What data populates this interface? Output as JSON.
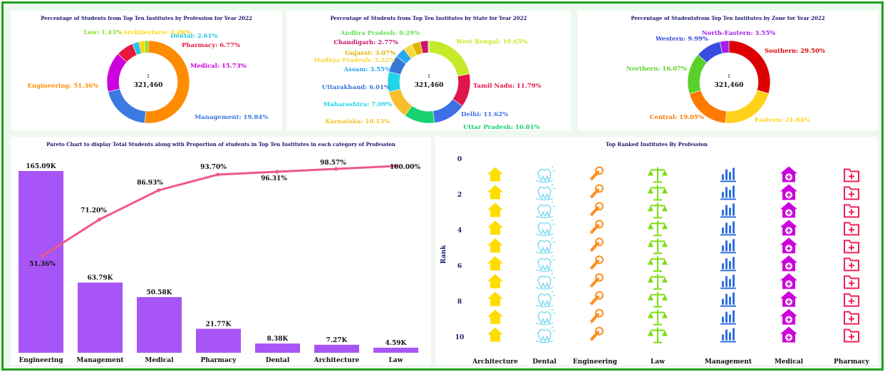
{
  "donut_profession": {
    "title": "Percentage of Students from Top Ten Institutes by Profession for Year 2022",
    "center_label": ":",
    "center_value": "321,460",
    "chart_data": {
      "type": "pie",
      "labels": [
        "Engineering",
        "Management",
        "Medical",
        "Pharmacy",
        "Dental",
        "Architecture",
        "Law"
      ],
      "values": [
        51.36,
        19.84,
        15.73,
        6.77,
        2.61,
        2.26,
        1.43
      ],
      "label_text": [
        "Engineering: 51.36%",
        "Management: 19.84%",
        "Medical: 15.73%",
        "Pharmacy: 6.77%",
        "Dental: 2.61%",
        "Architecture: 2.26%",
        "Law: 1.43%"
      ],
      "colors": [
        "#ff8c00",
        "#3b7ae0",
        "#cc00dd",
        "#e8173d",
        "#22c8e8",
        "#ffd600",
        "#88dd22"
      ]
    }
  },
  "donut_state": {
    "title": "Percentage of Students from Top Ten Institutes by State for Year 2022",
    "center_label": ":",
    "center_value": "321,460",
    "chart_data": {
      "type": "pie",
      "labels": [
        "West Bengal",
        "Tamil Nadu",
        "Delhi",
        "Uttar Pradesh",
        "Karnataka",
        "Maharashtra",
        "Uttarakhand",
        "Assam",
        "Madhya Pradesh",
        "Gujarat",
        "Chandigarh",
        "Andhra Pradesh"
      ],
      "values": [
        19.65,
        11.79,
        11.62,
        10.81,
        10.13,
        7.09,
        6.01,
        3.55,
        3.22,
        3.07,
        2.77,
        0.29
      ],
      "label_text": [
        "West Bengal: 19.65%",
        "Tamil Nadu: 11.79%",
        "Delhi: 11.62%",
        "Uttar Pradesh: 10.81%",
        "Karnataka: 10.13%",
        "Maharashtra: 7.09%",
        "Uttarakhand: 6.01%",
        "Assam: 3.55%",
        "Madhya Pradesh: 3.22%",
        "Gujarat: 3.07%",
        "Chandigarh: 2.77%",
        "Andhra Pradesh: 0.29%"
      ],
      "colors": [
        "#c6ea2a",
        "#e0164a",
        "#3d6fe6",
        "#18d26e",
        "#f7bf2b",
        "#22d4e8",
        "#3578d6",
        "#29a8f0",
        "#f6d93a",
        "#e0b400",
        "#c8156e",
        "#66dd55"
      ]
    }
  },
  "donut_zone": {
    "title": "Percentage of Studentsfrom Top Ten Institutes by Zone for Year 2022",
    "center_label": ":",
    "center_value": "321,460",
    "chart_data": {
      "type": "pie",
      "labels": [
        "Southern",
        "Eastern",
        "Central",
        "Northern",
        "Western",
        "North-Eastern"
      ],
      "values": [
        29.5,
        21.84,
        19.05,
        16.07,
        9.99,
        3.55
      ],
      "label_text": [
        "Southern: 29.50%",
        "Eastern: 21.84%",
        "Central: 19.05%",
        "Northern: 16.07%",
        "Western: 9.99%",
        "North-Eastern: 3.55%"
      ],
      "colors": [
        "#dd0000",
        "#ffd11a",
        "#ff7a00",
        "#5ad12a",
        "#3a4ce0",
        "#a020f0"
      ]
    }
  },
  "pareto": {
    "title": "Pareto Chart to display Total Students along with Proportion of students in Top Ten Institutes in each category of Profession",
    "chart_data": {
      "type": "bar",
      "categories": [
        "Engineering",
        "Management",
        "Medical",
        "Pharmacy",
        "Dental",
        "Architecture",
        "Law"
      ],
      "values": [
        165.09,
        63.79,
        50.58,
        21.77,
        8.38,
        7.27,
        4.59
      ],
      "value_labels": [
        "165.09K",
        "63.79K",
        "50.58K",
        "21.77K",
        "8.38K",
        "7.27K",
        "4.59K"
      ],
      "cumulative_percent": [
        51.36,
        71.2,
        86.93,
        93.7,
        96.31,
        98.57,
        100.0
      ],
      "cumulative_labels": [
        "51.36%",
        "71.20%",
        "86.93%",
        "93.70%",
        "96.31%",
        "98.57%",
        "100.00%"
      ],
      "bar_color": "#a855f7",
      "line_color": "#ee5a86"
    }
  },
  "ranked": {
    "title": "Top Ranked Institutes By Profession",
    "ylabel": "Rank",
    "yticks": [
      "0",
      "2",
      "4",
      "6",
      "8",
      "10"
    ],
    "chart_data": {
      "type": "scatter",
      "categories": [
        "Architecture",
        "Dental",
        "Engineering",
        "Law",
        "Management",
        "Medical",
        "Pharmacy"
      ],
      "ranks": [
        1,
        2,
        3,
        4,
        5,
        6,
        7,
        8,
        9,
        10
      ],
      "icons": [
        "house-icon",
        "tooth-icon",
        "wrench-icon",
        "scales-icon",
        "building-icon",
        "hospital-icon",
        "medical-folder-icon"
      ],
      "colors": [
        "#ffdd00",
        "#66d4ee",
        "#ff8c1a",
        "#7ddc10",
        "#2f6fe0",
        "#cc00dd",
        "#ee2255"
      ],
      "ylim": [
        0,
        10.5
      ]
    }
  }
}
